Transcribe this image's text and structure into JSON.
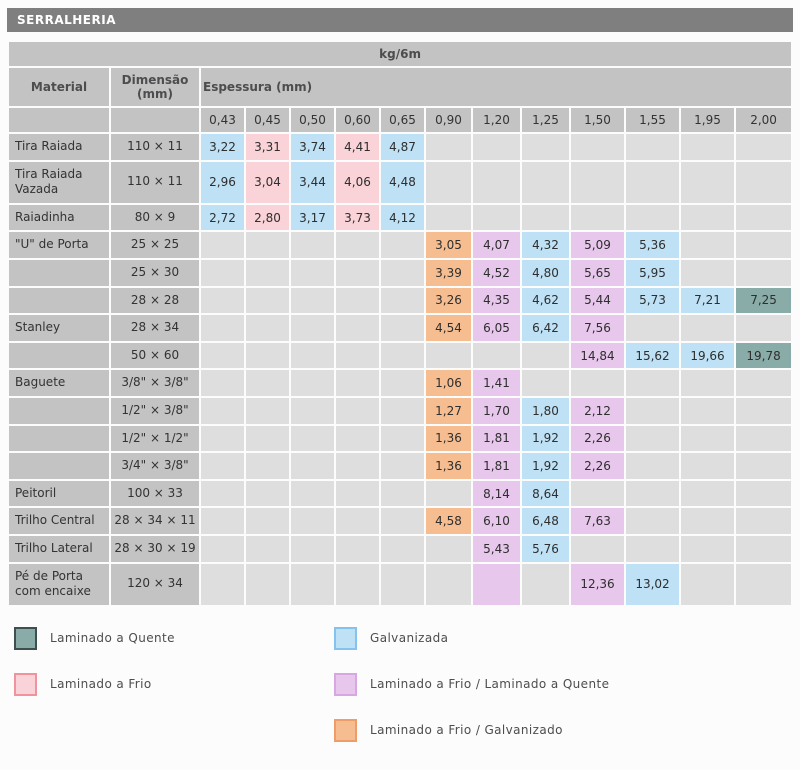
{
  "page": {
    "title": "SERRALHERIA"
  },
  "table": {
    "unit_header": "kg/6m",
    "material_header": "Material",
    "dimension_header": "Dimensão (mm)",
    "thickness_group_header": "Espessura (mm)",
    "thickness_columns": [
      "0,43",
      "0,45",
      "0,50",
      "0,60",
      "0,65",
      "0,90",
      "1,20",
      "1,25",
      "1,50",
      "1,55",
      "1,95",
      "2,00"
    ],
    "rows": [
      {
        "material": "Tira Raiada",
        "dimension": "110 × 11",
        "cells": [
          {
            "col": 0,
            "value": "3,22",
            "type": "galvanizada"
          },
          {
            "col": 1,
            "value": "3,31",
            "type": "laminado_frio"
          },
          {
            "col": 2,
            "value": "3,74",
            "type": "galvanizada"
          },
          {
            "col": 3,
            "value": "4,41",
            "type": "laminado_frio"
          },
          {
            "col": 4,
            "value": "4,87",
            "type": "galvanizada"
          }
        ]
      },
      {
        "material": "Tira Raiada Vazada",
        "dimension": "110 × 11",
        "cells": [
          {
            "col": 0,
            "value": "2,96",
            "type": "galvanizada"
          },
          {
            "col": 1,
            "value": "3,04",
            "type": "laminado_frio"
          },
          {
            "col": 2,
            "value": "3,44",
            "type": "galvanizada"
          },
          {
            "col": 3,
            "value": "4,06",
            "type": "laminado_frio"
          },
          {
            "col": 4,
            "value": "4,48",
            "type": "galvanizada"
          }
        ]
      },
      {
        "material": "Raiadinha",
        "dimension": "80 × 9",
        "cells": [
          {
            "col": 0,
            "value": "2,72",
            "type": "galvanizada"
          },
          {
            "col": 1,
            "value": "2,80",
            "type": "laminado_frio"
          },
          {
            "col": 2,
            "value": "3,17",
            "type": "galvanizada"
          },
          {
            "col": 3,
            "value": "3,73",
            "type": "laminado_frio"
          },
          {
            "col": 4,
            "value": "4,12",
            "type": "galvanizada"
          }
        ]
      },
      {
        "material": "\"U\" de Porta",
        "dimension": "25 × 25",
        "cells": [
          {
            "col": 5,
            "value": "3,05",
            "type": "frio_galvanizado"
          },
          {
            "col": 6,
            "value": "4,07",
            "type": "frio_quente"
          },
          {
            "col": 7,
            "value": "4,32",
            "type": "galvanizada"
          },
          {
            "col": 8,
            "value": "5,09",
            "type": "frio_quente"
          },
          {
            "col": 9,
            "value": "5,36",
            "type": "galvanizada"
          }
        ]
      },
      {
        "material": "",
        "dimension": "25 × 30",
        "cells": [
          {
            "col": 5,
            "value": "3,39",
            "type": "frio_galvanizado"
          },
          {
            "col": 6,
            "value": "4,52",
            "type": "frio_quente"
          },
          {
            "col": 7,
            "value": "4,80",
            "type": "galvanizada"
          },
          {
            "col": 8,
            "value": "5,65",
            "type": "frio_quente"
          },
          {
            "col": 9,
            "value": "5,95",
            "type": "galvanizada"
          }
        ]
      },
      {
        "material": "",
        "dimension": "28 × 28",
        "cells": [
          {
            "col": 5,
            "value": "3,26",
            "type": "frio_galvanizado"
          },
          {
            "col": 6,
            "value": "4,35",
            "type": "frio_quente"
          },
          {
            "col": 7,
            "value": "4,62",
            "type": "galvanizada"
          },
          {
            "col": 8,
            "value": "5,44",
            "type": "frio_quente"
          },
          {
            "col": 9,
            "value": "5,73",
            "type": "galvanizada"
          },
          {
            "col": 10,
            "value": "7,21",
            "type": "galvanizada"
          },
          {
            "col": 11,
            "value": "7,25",
            "type": "laminado_quente"
          }
        ]
      },
      {
        "material": "Stanley",
        "dimension": "28 × 34",
        "cells": [
          {
            "col": 5,
            "value": "4,54",
            "type": "frio_galvanizado"
          },
          {
            "col": 6,
            "value": "6,05",
            "type": "frio_quente"
          },
          {
            "col": 7,
            "value": "6,42",
            "type": "galvanizada"
          },
          {
            "col": 8,
            "value": "7,56",
            "type": "frio_quente"
          }
        ]
      },
      {
        "material": "",
        "dimension": "50 × 60",
        "cells": [
          {
            "col": 8,
            "value": "14,84",
            "type": "frio_quente"
          },
          {
            "col": 9,
            "value": "15,62",
            "type": "galvanizada"
          },
          {
            "col": 10,
            "value": "19,66",
            "type": "galvanizada"
          },
          {
            "col": 11,
            "value": "19,78",
            "type": "laminado_quente"
          }
        ]
      },
      {
        "material": "Baguete",
        "dimension": "3/8\" × 3/8\"",
        "cells": [
          {
            "col": 5,
            "value": "1,06",
            "type": "frio_galvanizado"
          },
          {
            "col": 6,
            "value": "1,41",
            "type": "frio_quente"
          }
        ]
      },
      {
        "material": "",
        "dimension": "1/2\" × 3/8\"",
        "cells": [
          {
            "col": 5,
            "value": "1,27",
            "type": "frio_galvanizado"
          },
          {
            "col": 6,
            "value": "1,70",
            "type": "frio_quente"
          },
          {
            "col": 7,
            "value": "1,80",
            "type": "galvanizada"
          },
          {
            "col": 8,
            "value": "2,12",
            "type": "frio_quente"
          }
        ]
      },
      {
        "material": "",
        "dimension": "1/2\" × 1/2\"",
        "cells": [
          {
            "col": 5,
            "value": "1,36",
            "type": "frio_galvanizado"
          },
          {
            "col": 6,
            "value": "1,81",
            "type": "frio_quente"
          },
          {
            "col": 7,
            "value": "1,92",
            "type": "galvanizada"
          },
          {
            "col": 8,
            "value": "2,26",
            "type": "frio_quente"
          }
        ]
      },
      {
        "material": "",
        "dimension": "3/4\" × 3/8\"",
        "cells": [
          {
            "col": 5,
            "value": "1,36",
            "type": "frio_galvanizado"
          },
          {
            "col": 6,
            "value": "1,81",
            "type": "frio_quente"
          },
          {
            "col": 7,
            "value": "1,92",
            "type": "galvanizada"
          },
          {
            "col": 8,
            "value": "2,26",
            "type": "frio_quente"
          }
        ]
      },
      {
        "material": "Peitoril",
        "dimension": "100 × 33",
        "cells": [
          {
            "col": 6,
            "value": "8,14",
            "type": "frio_quente"
          },
          {
            "col": 7,
            "value": "8,64",
            "type": "galvanizada"
          }
        ]
      },
      {
        "material": "Trilho Central",
        "dimension": "28 × 34 × 11",
        "cells": [
          {
            "col": 5,
            "value": "4,58",
            "type": "frio_galvanizado"
          },
          {
            "col": 6,
            "value": "6,10",
            "type": "frio_quente"
          },
          {
            "col": 7,
            "value": "6,48",
            "type": "galvanizada"
          },
          {
            "col": 8,
            "value": "7,63",
            "type": "frio_quente"
          }
        ]
      },
      {
        "material": "Trilho Lateral",
        "dimension": "28 × 30 × 19",
        "cells": [
          {
            "col": 6,
            "value": "5,43",
            "type": "frio_quente"
          },
          {
            "col": 7,
            "value": "5,76",
            "type": "galvanizada"
          }
        ]
      },
      {
        "material": "Pé de Porta com encaixe",
        "dimension": "120 × 34",
        "cells": [
          {
            "col": 6,
            "value": "",
            "type": "frio_quente"
          },
          {
            "col": 8,
            "value": "12,36",
            "type": "frio_quente"
          },
          {
            "col": 9,
            "value": "13,02",
            "type": "galvanizada"
          }
        ]
      }
    ]
  },
  "legend": {
    "items": [
      {
        "type": "laminado_quente",
        "label": "Laminado a Quente",
        "column": "left"
      },
      {
        "type": "laminado_frio",
        "label": "Laminado a Frio",
        "column": "left"
      },
      {
        "type": "galvanizada",
        "label": "Galvanizada",
        "column": "right"
      },
      {
        "type": "frio_quente",
        "label": "Laminado a Frio / Laminado a Quente",
        "column": "right"
      },
      {
        "type": "frio_galvanizado",
        "label": "Laminado a Frio / Galvanizado",
        "column": "right"
      }
    ]
  },
  "colors": {
    "title_bar": {
      "fill": "#7F7F7F"
    },
    "header_cell": {
      "fill": "#C3C3C3"
    },
    "empty_cell": {
      "fill": "#DEDEDE"
    },
    "galvanizada": {
      "fill": "#BEE1F5",
      "border": "#86C2EE"
    },
    "laminado_frio": {
      "fill": "#F9D3D7",
      "border": "#F0939E"
    },
    "laminado_quente": {
      "fill": "#8AACA9",
      "border": "#3E4F4F"
    },
    "frio_quente": {
      "fill": "#E7C7EB",
      "border": "#D8A6E2"
    },
    "frio_galvanizado": {
      "fill": "#F6BE90",
      "border": "#EE9D68"
    }
  }
}
